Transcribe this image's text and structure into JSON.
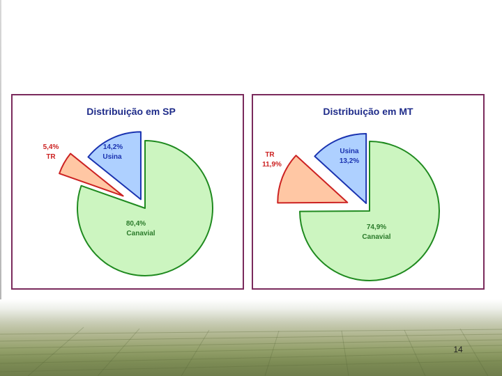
{
  "slide": {
    "page_number": "14"
  },
  "colors": {
    "panel_border": "#7a2a5c",
    "title": "#1f2c8a",
    "canavial_fill": "#ccf5c0",
    "canavial_stroke": "#1f8a1f",
    "canavial_text": "#2a7a2a",
    "usina_fill": "#aed0ff",
    "usina_stroke": "#1a33b0",
    "usina_text": "#1a33b0",
    "tr_fill": "#ffc7a4",
    "tr_stroke": "#cc2222",
    "tr_text": "#cc2222"
  },
  "chart_data": [
    {
      "type": "pie",
      "title": "Distribuição em SP",
      "slices": [
        {
          "label": "Canavial",
          "value": 80.4,
          "value_label": "80,4%",
          "color": "#ccf5c0"
        },
        {
          "label": "TR",
          "value": 5.4,
          "value_label": "5,4%",
          "color": "#ffc7a4"
        },
        {
          "label": "Usina",
          "value": 14.2,
          "value_label": "14,2%",
          "color": "#aed0ff"
        }
      ],
      "exploded": [
        "TR",
        "Usina"
      ],
      "legend": "none"
    },
    {
      "type": "pie",
      "title": "Distribuição em MT",
      "slices": [
        {
          "label": "Canavial",
          "value": 74.9,
          "value_label": "74,9%",
          "color": "#ccf5c0"
        },
        {
          "label": "TR",
          "value": 11.9,
          "value_label": "11,9%",
          "color": "#ffc7a4"
        },
        {
          "label": "Usina",
          "value": 13.2,
          "value_label": "13,2%",
          "color": "#aed0ff"
        }
      ],
      "exploded": [
        "TR",
        "Usina"
      ],
      "legend": "none"
    }
  ]
}
